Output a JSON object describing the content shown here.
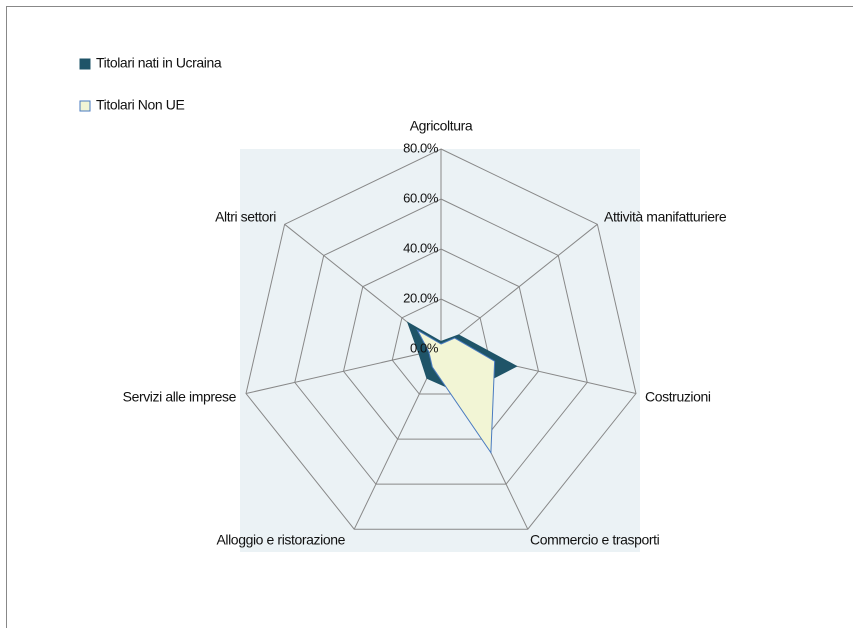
{
  "chart_data": {
    "type": "radar",
    "categories": [
      "Agricoltura",
      "Attività manifatturiere",
      "Costruzioni",
      "Commercio e trasporti",
      "Alloggio e ristorazione",
      "Servizi alle imprese",
      "Altri settori"
    ],
    "series": [
      {
        "name": "Titolari nati in Ucraina",
        "color": "#1f5468",
        "values": [
          3,
          9,
          31,
          20,
          13,
          9,
          17
        ]
      },
      {
        "name": "Titolari Non UE",
        "color": "#f2f5d5",
        "stroke": "#4a7bc0",
        "values": [
          2,
          7,
          22,
          46,
          8,
          5,
          12
        ]
      }
    ],
    "ylim": [
      0,
      80
    ],
    "yticks": [
      {
        "value": 0,
        "label": "0.0%"
      },
      {
        "value": 20,
        "label": "20.0%"
      },
      {
        "value": 40,
        "label": "40.0%"
      },
      {
        "value": 60,
        "label": "60.0%"
      },
      {
        "value": 80,
        "label": "80.0%"
      }
    ],
    "grid": true,
    "legend": "top-left"
  }
}
